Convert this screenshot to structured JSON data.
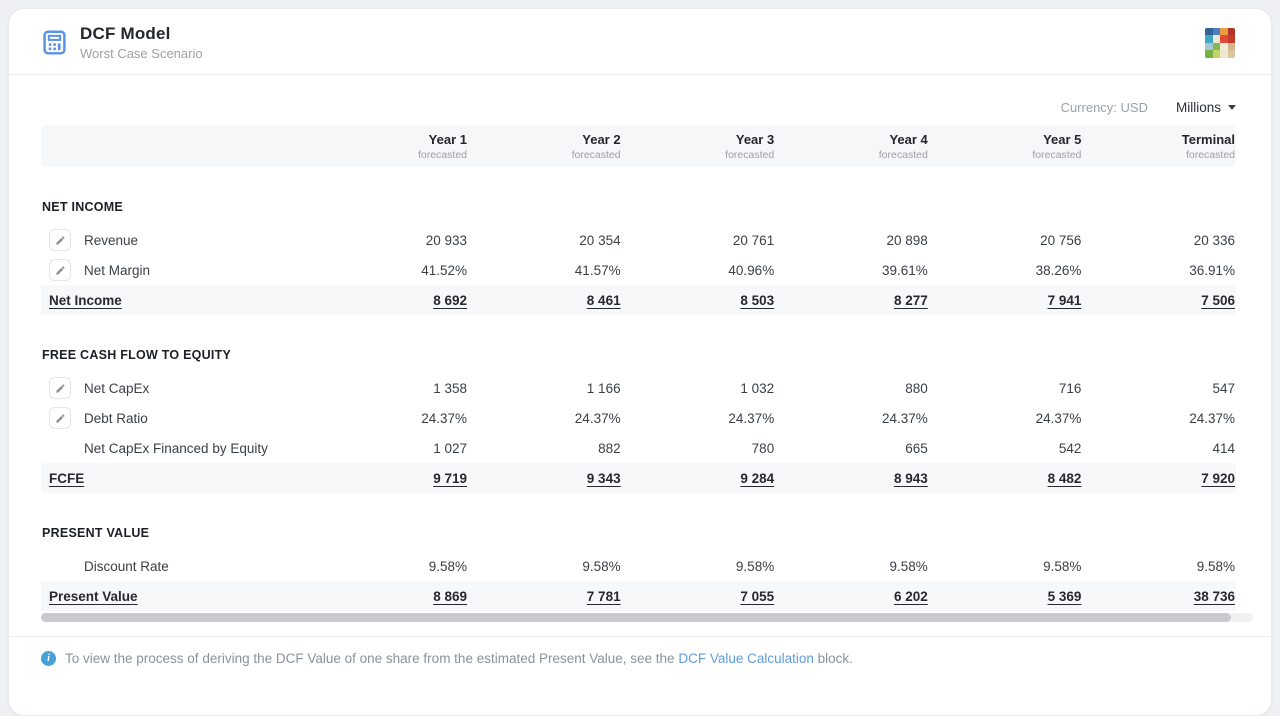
{
  "header": {
    "title": "DCF Model",
    "subtitle": "Worst Case Scenario"
  },
  "controls": {
    "currency_label": "Currency: USD",
    "unit_selector": "Millions"
  },
  "table": {
    "columns": [
      {
        "label": "Year 1",
        "sub": "forecasted"
      },
      {
        "label": "Year 2",
        "sub": "forecasted"
      },
      {
        "label": "Year 3",
        "sub": "forecasted"
      },
      {
        "label": "Year 4",
        "sub": "forecasted"
      },
      {
        "label": "Year 5",
        "sub": "forecasted"
      },
      {
        "label": "Terminal",
        "sub": "forecasted"
      }
    ],
    "sections": [
      {
        "title": "NET INCOME",
        "rows": [
          {
            "label": "Revenue",
            "editable": true,
            "total": false,
            "values": [
              "20 933",
              "20 354",
              "20 761",
              "20 898",
              "20 756",
              "20 336"
            ]
          },
          {
            "label": "Net Margin",
            "editable": true,
            "total": false,
            "values": [
              "41.52%",
              "41.57%",
              "40.96%",
              "39.61%",
              "38.26%",
              "36.91%"
            ]
          },
          {
            "label": "Net Income",
            "editable": false,
            "total": true,
            "values": [
              "8 692",
              "8 461",
              "8 503",
              "8 277",
              "7 941",
              "7 506"
            ]
          }
        ]
      },
      {
        "title": "FREE CASH FLOW TO EQUITY",
        "rows": [
          {
            "label": "Net CapEx",
            "editable": true,
            "total": false,
            "values": [
              "1 358",
              "1 166",
              "1 032",
              "880",
              "716",
              "547"
            ]
          },
          {
            "label": "Debt Ratio",
            "editable": true,
            "total": false,
            "values": [
              "24.37%",
              "24.37%",
              "24.37%",
              "24.37%",
              "24.37%",
              "24.37%"
            ]
          },
          {
            "label": "Net CapEx Financed by Equity",
            "editable": false,
            "total": false,
            "values": [
              "1 027",
              "882",
              "780",
              "665",
              "542",
              "414"
            ]
          },
          {
            "label": "FCFE",
            "editable": false,
            "total": true,
            "values": [
              "9 719",
              "9 343",
              "9 284",
              "8 943",
              "8 482",
              "7 920"
            ]
          }
        ]
      },
      {
        "title": "PRESENT VALUE",
        "rows": [
          {
            "label": "Discount Rate",
            "editable": false,
            "total": false,
            "values": [
              "9.58%",
              "9.58%",
              "9.58%",
              "9.58%",
              "9.58%",
              "9.58%"
            ]
          },
          {
            "label": "Present Value",
            "editable": false,
            "total": true,
            "values": [
              "8 869",
              "7 781",
              "7 055",
              "6 202",
              "5 369",
              "38 736"
            ]
          }
        ]
      }
    ]
  },
  "footer": {
    "text_before_link": "To view the process of deriving the DCF Value of one share from the estimated Present Value, see the ",
    "link_text": "DCF Value Calculation",
    "text_after_link": " block."
  },
  "logo_colors": [
    "#34639c",
    "#4a7fc0",
    "#eb9c40",
    "#b03327",
    "#41a6c4",
    "#efe7d3",
    "#df4b38",
    "#c63c2c",
    "#a6c6d8",
    "#83b94e",
    "#f1ecd9",
    "#d9b38c",
    "#77b043",
    "#c3d46a",
    "#efe7cd",
    "#dcc49c"
  ],
  "colors": {
    "accent_blue": "#5b93e8",
    "link_blue": "#5f9cdf",
    "info_blue": "#49a0d5"
  }
}
